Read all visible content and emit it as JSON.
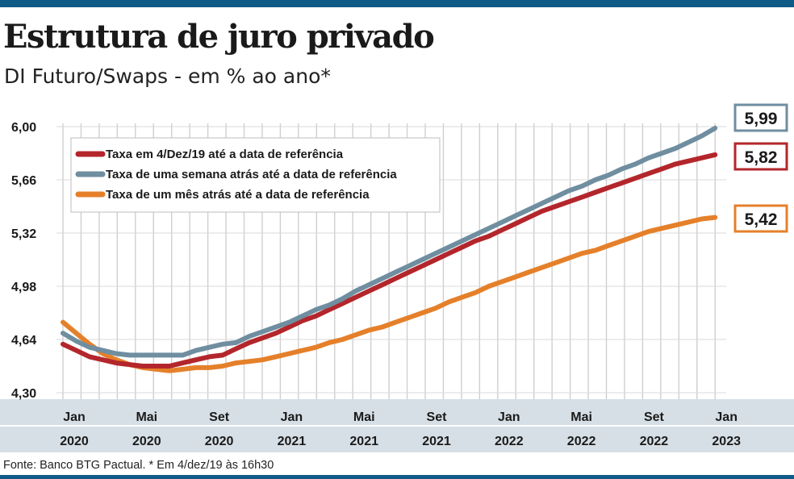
{
  "header": {
    "title": "Estrutura de juro privado",
    "subtitle": "DI Futuro/Swaps - em % ao ano*"
  },
  "footer": {
    "source": "Fonte: Banco BTG Pactual. * Em 4/dez/19 às 16h30"
  },
  "colors": {
    "brand": "#0f5a86",
    "series_dec": "#b3262b",
    "series_week": "#6f8ea0",
    "series_month": "#e5802a",
    "x_band": "#d6dfe6"
  },
  "chart_data": {
    "type": "line",
    "title": "Estrutura de juro privado",
    "subtitle": "DI Futuro/Swaps - em % ao ano*",
    "xlabel": "",
    "ylabel": "",
    "ylim": [
      4.3,
      6.0
    ],
    "yticks": [
      "6,00",
      "5,66",
      "5,32",
      "4,98",
      "4,64",
      "4,30"
    ],
    "ytick_values": [
      6.0,
      5.66,
      5.32,
      4.98,
      4.64,
      4.3
    ],
    "x_month_ticks": [
      {
        "month": "Jan",
        "year": "2020",
        "index": 0
      },
      {
        "month": "Mai",
        "year": "2020",
        "index": 4
      },
      {
        "month": "Set",
        "year": "2020",
        "index": 8
      },
      {
        "month": "Jan",
        "year": "2021",
        "index": 12
      },
      {
        "month": "Mai",
        "year": "2021",
        "index": 16
      },
      {
        "month": "Set",
        "year": "2021",
        "index": 20
      },
      {
        "month": "Jan",
        "year": "2022",
        "index": 24
      },
      {
        "month": "Mai",
        "year": "2022",
        "index": 28
      },
      {
        "month": "Set",
        "year": "2022",
        "index": 32
      },
      {
        "month": "Jan",
        "year": "2023",
        "index": 36
      }
    ],
    "x_count": 37,
    "grid": true,
    "legend_position": "top-left",
    "series": [
      {
        "name": "Taxa em 4/Dez/19 até a data de referência",
        "color": "#b3262b",
        "end_label": "5,82",
        "values": [
          4.61,
          4.57,
          4.53,
          4.51,
          4.49,
          4.48,
          4.47,
          4.47,
          4.47,
          4.49,
          4.51,
          4.53,
          4.54,
          4.58,
          4.62,
          4.65,
          4.68,
          4.72,
          4.76,
          4.79,
          4.83,
          4.87,
          4.91,
          4.95,
          4.99,
          5.03,
          5.07,
          5.11,
          5.15,
          5.19,
          5.23,
          5.27,
          5.3,
          5.34,
          5.38,
          5.42,
          5.46,
          5.49,
          5.52,
          5.55,
          5.58,
          5.61,
          5.64,
          5.67,
          5.7,
          5.73,
          5.76,
          5.78,
          5.8,
          5.82
        ]
      },
      {
        "name": "Taxa de uma semana atrás até a data de referência",
        "color": "#6f8ea0",
        "end_label": "5,99",
        "values": [
          4.68,
          4.63,
          4.59,
          4.57,
          4.55,
          4.54,
          4.54,
          4.54,
          4.54,
          4.54,
          4.57,
          4.59,
          4.61,
          4.62,
          4.66,
          4.69,
          4.72,
          4.75,
          4.79,
          4.83,
          4.86,
          4.9,
          4.95,
          4.99,
          5.03,
          5.07,
          5.11,
          5.15,
          5.19,
          5.23,
          5.27,
          5.31,
          5.35,
          5.39,
          5.43,
          5.47,
          5.51,
          5.55,
          5.59,
          5.62,
          5.66,
          5.69,
          5.73,
          5.76,
          5.8,
          5.83,
          5.86,
          5.9,
          5.94,
          5.99
        ]
      },
      {
        "name": "Taxa de um mês atrás até a data de referência",
        "color": "#e5802a",
        "end_label": "5,42",
        "values": [
          4.75,
          4.68,
          4.61,
          4.55,
          4.51,
          4.48,
          4.46,
          4.45,
          4.44,
          4.45,
          4.46,
          4.46,
          4.47,
          4.49,
          4.5,
          4.51,
          4.53,
          4.55,
          4.57,
          4.59,
          4.62,
          4.64,
          4.67,
          4.7,
          4.72,
          4.75,
          4.78,
          4.81,
          4.84,
          4.88,
          4.91,
          4.94,
          4.98,
          5.01,
          5.04,
          5.07,
          5.1,
          5.13,
          5.16,
          5.19,
          5.21,
          5.24,
          5.27,
          5.3,
          5.33,
          5.35,
          5.37,
          5.39,
          5.41,
          5.42
        ]
      }
    ]
  }
}
